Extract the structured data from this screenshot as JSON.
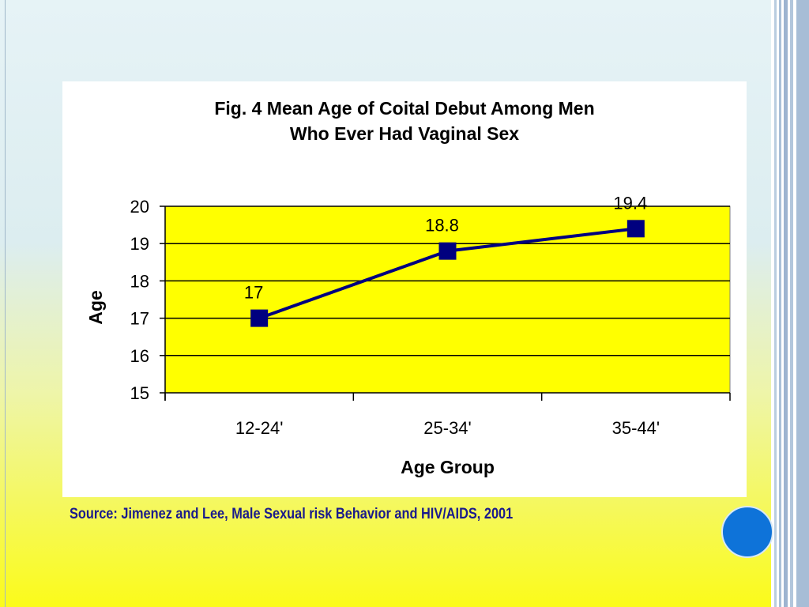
{
  "slide": {
    "source": "Source: Jimenez and Lee, Male Sexual risk Behavior and HIV/AIDS, 2001",
    "accent_dot_color": "#0e73d9"
  },
  "chart_data": {
    "type": "line",
    "title_lines": [
      "Fig. 4 Mean Age of Coital Debut Among Men",
      "Who Ever Had Vaginal Sex"
    ],
    "categories": [
      "12-24'",
      "25-34'",
      "35-44'"
    ],
    "series": [
      {
        "values": [
          17,
          18.8,
          19.4
        ],
        "labels": [
          "17",
          "18.8",
          "19.4"
        ],
        "color": "#00007f"
      }
    ],
    "xlabel": "Age Group",
    "ylabel": "Age",
    "ylim": [
      15,
      20
    ],
    "yticks": [
      "15",
      "16",
      "17",
      "18",
      "19",
      "20"
    ],
    "grid": true,
    "plot_background": "#ffff00"
  }
}
